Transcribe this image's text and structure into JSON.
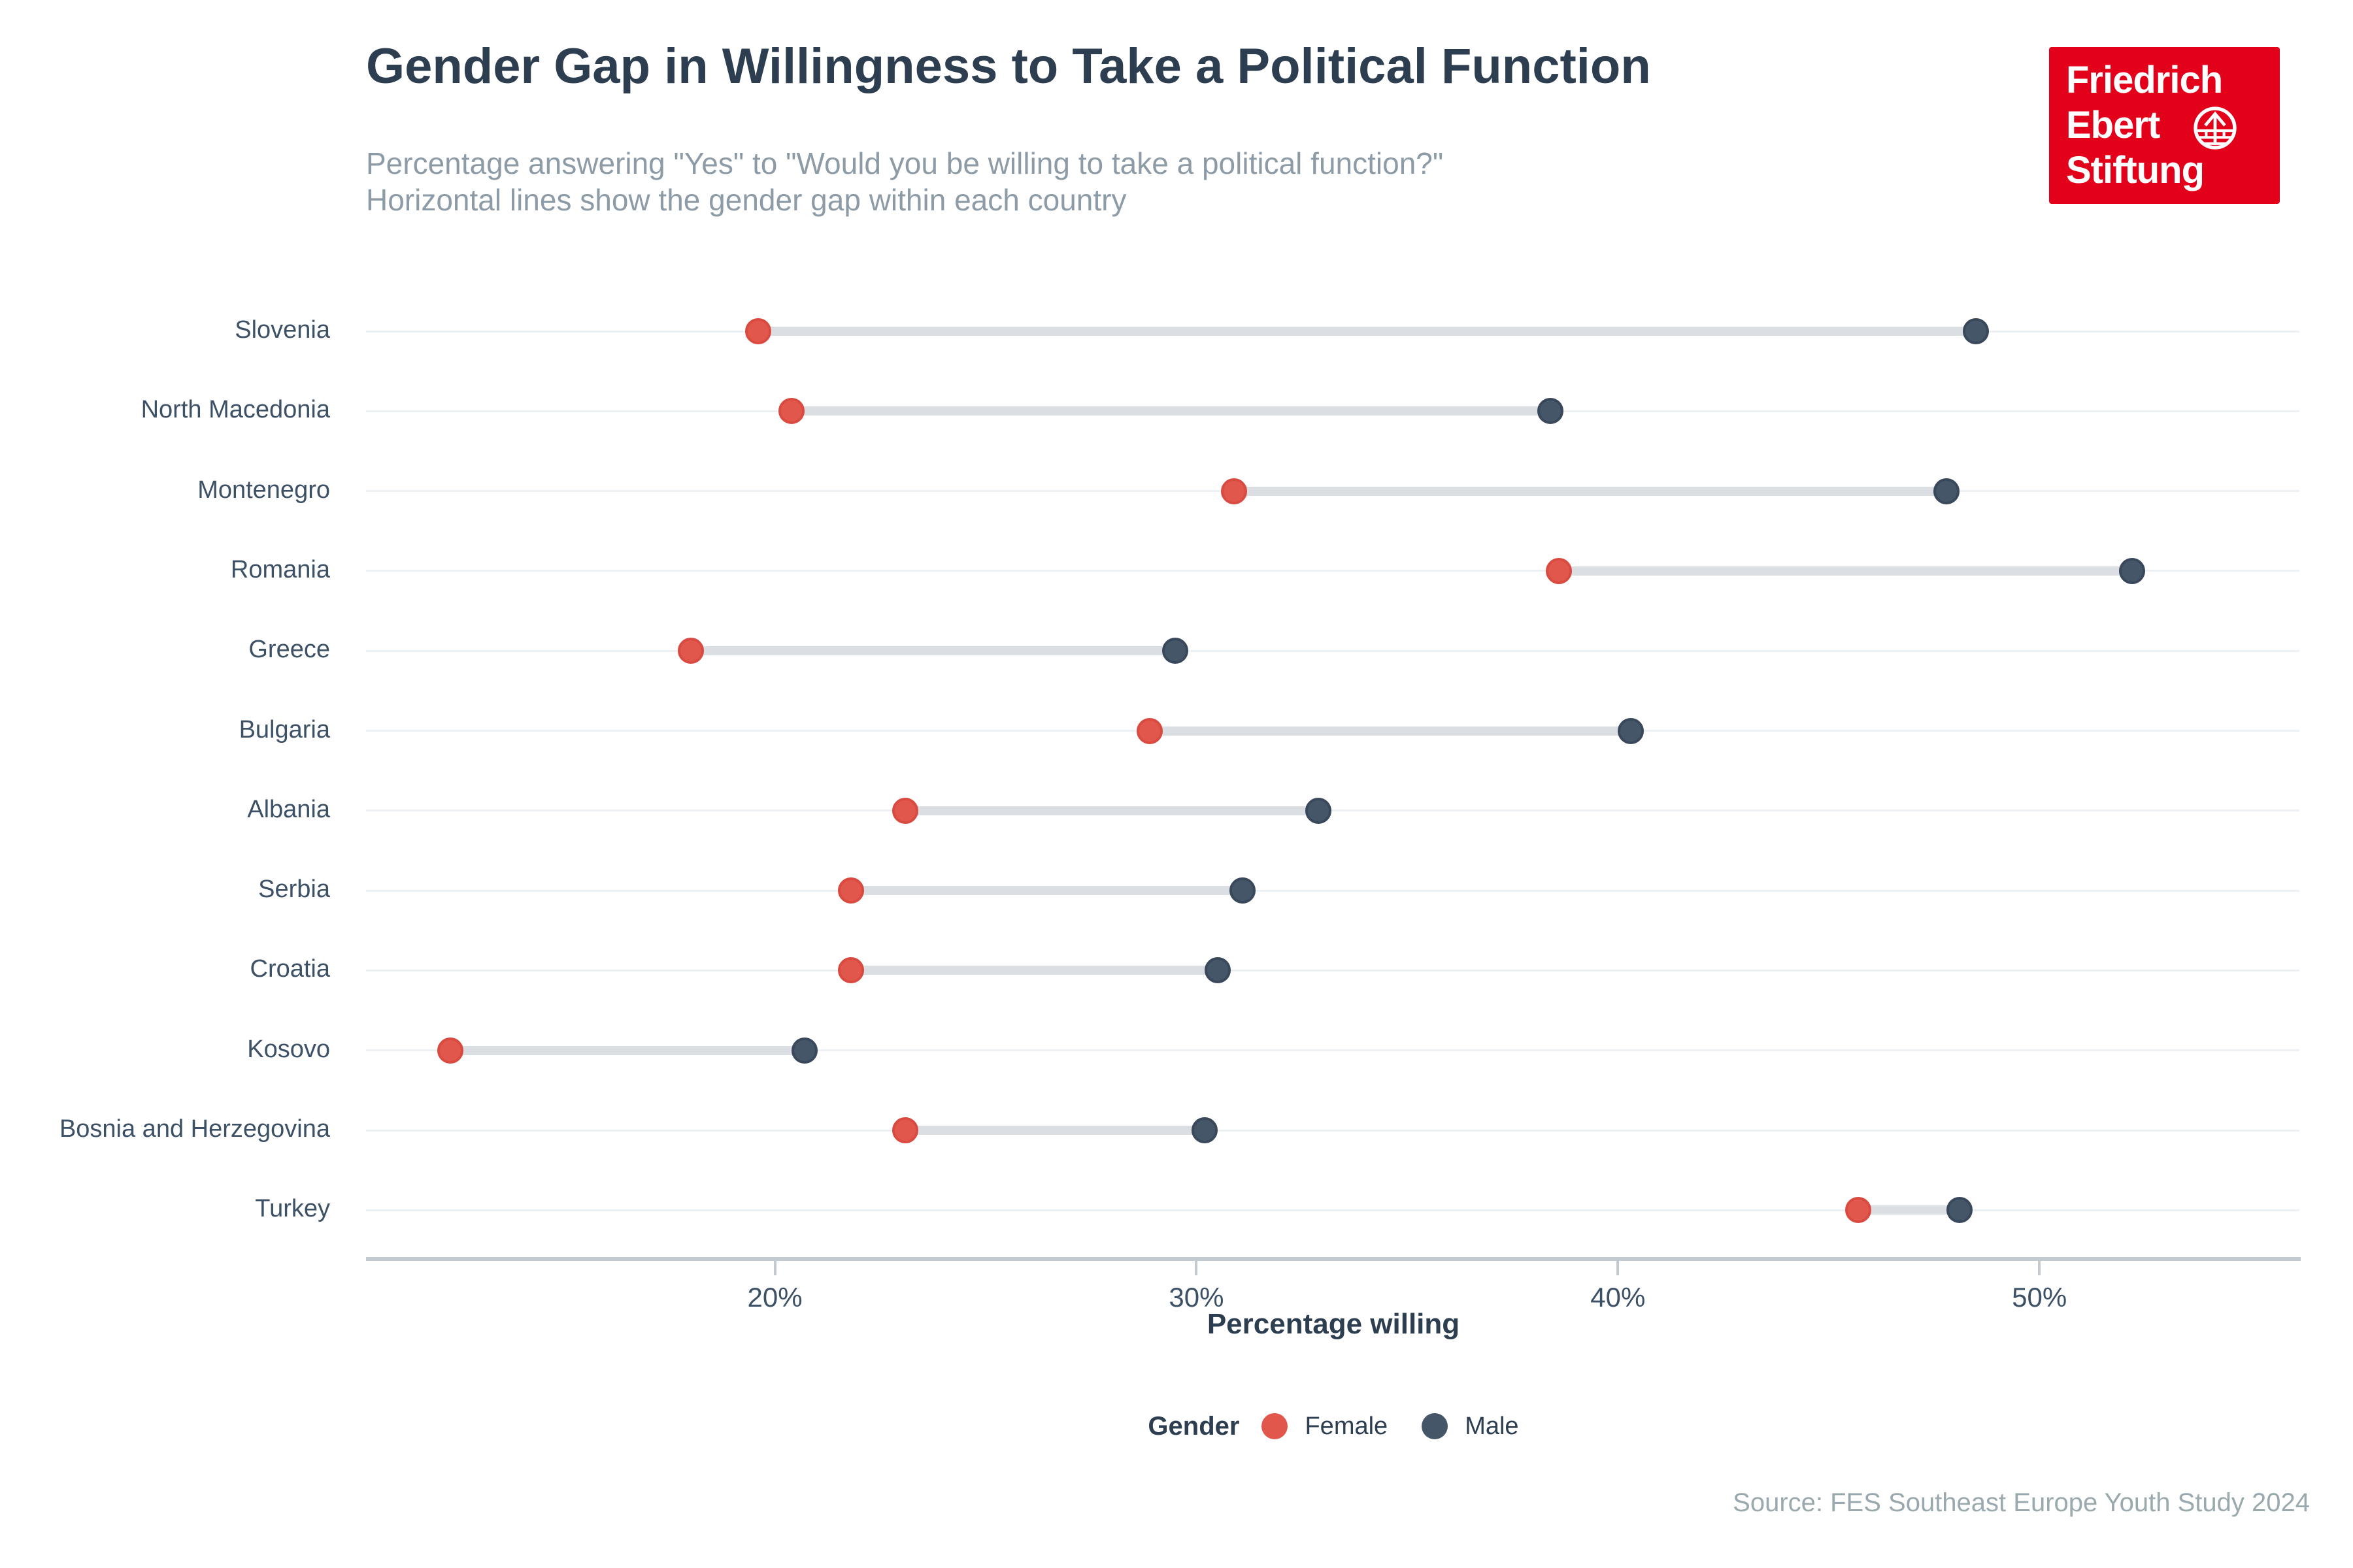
{
  "header": {
    "title": "Gender Gap in Willingness to Take a Political Function",
    "subtitle_line1": "Percentage answering \"Yes\" to \"Would you be willing to take a political function?\"",
    "subtitle_line2": "Horizontal lines show the gender gap within each country"
  },
  "logo": {
    "line1": "Friedrich",
    "line2": "Ebert",
    "line3": "Stiftung",
    "bg_color": "#e2001a"
  },
  "chart_data": {
    "type": "scatter",
    "variant": "dumbbell",
    "title": "Gender Gap in Willingness to Take a Political Function",
    "categories": [
      "Slovenia",
      "North Macedonia",
      "Montenegro",
      "Romania",
      "Greece",
      "Bulgaria",
      "Albania",
      "Serbia",
      "Croatia",
      "Kosovo",
      "Bosnia and Herzegovina",
      "Turkey"
    ],
    "series": [
      {
        "name": "Female",
        "color": "#e2574c",
        "border_color": "#d94b40",
        "values": [
          19.6,
          20.4,
          30.9,
          38.6,
          18.0,
          28.9,
          23.1,
          21.8,
          21.8,
          12.3,
          23.1,
          45.7
        ]
      },
      {
        "name": "Male",
        "color": "#455668",
        "border_color": "#39485a",
        "values": [
          48.5,
          38.4,
          47.8,
          52.2,
          29.5,
          40.3,
          32.9,
          31.1,
          30.5,
          20.7,
          30.2,
          48.1
        ]
      }
    ],
    "xlabel": "Percentage willing",
    "ylabel": "",
    "x_ticks": [
      "20%",
      "30%",
      "40%",
      "50%"
    ],
    "x_tick_values": [
      20,
      30,
      40,
      50
    ],
    "xlim": [
      10.3,
      56.2
    ],
    "grid": "horizontal-rows",
    "legend": {
      "title": "Gender",
      "entries": [
        "Female",
        "Male"
      ],
      "position": "bottom-center"
    }
  },
  "footer": {
    "source": "Source: FES Southeast Europe Youth Study 2024"
  }
}
